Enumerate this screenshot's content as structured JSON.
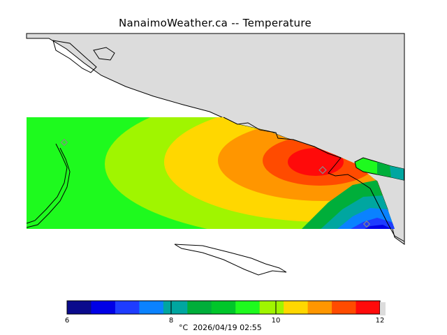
{
  "title": "NanaimoWeather.ca -- Temperature",
  "legend": {
    "colors": [
      "#0a0a8c",
      "#0000e6",
      "#1e3cff",
      "#0a82ff",
      "#00a6a0",
      "#00ae3a",
      "#00c62a",
      "#1efa1e",
      "#a0f500",
      "#ffd700",
      "#ff9600",
      "#ff4b00",
      "#ff0a0a"
    ],
    "ticks": [
      "6",
      "8",
      "10",
      "12"
    ],
    "unit": "°C",
    "timestamp": "2026/04/19 02:55"
  },
  "map": {
    "land_color": "#dcdcdc",
    "outline_color": "#000000",
    "station_color": "#888888"
  }
}
